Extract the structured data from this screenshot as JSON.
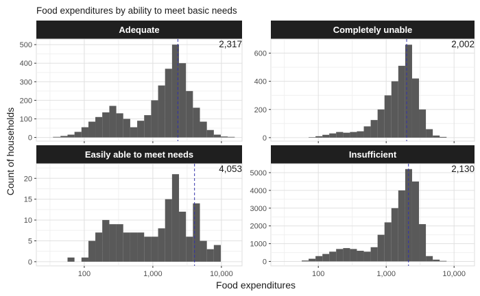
{
  "chart_data": {
    "type": "histogram",
    "title": "Food expenditures by ability to meet basic needs",
    "xlabel": "Food expenditures",
    "ylabel": "Count of households",
    "x_scale": "log10",
    "xlim": [
      20,
      20000
    ],
    "x_ticks": [
      100,
      1000,
      10000
    ],
    "x_tick_labels": [
      "100",
      "1,000",
      "10,000"
    ],
    "bar_color": "#595959",
    "median_line_color": "#3333aa",
    "strip_color": "#1f1f1f",
    "grid": true,
    "panels": [
      {
        "name": "Adequate",
        "median": 2317,
        "median_label": "2,317",
        "ylim": [
          -20,
          530
        ],
        "y_ticks": [
          0,
          100,
          200,
          300,
          400,
          500
        ],
        "y_tick_labels": [
          "0",
          "100",
          "200",
          "300",
          "400",
          "500"
        ],
        "bins": [
          {
            "x0": 35,
            "x1": 45,
            "count": 3
          },
          {
            "x0": 45,
            "x1": 57,
            "count": 8
          },
          {
            "x0": 57,
            "x1": 72,
            "count": 15
          },
          {
            "x0": 72,
            "x1": 91,
            "count": 30
          },
          {
            "x0": 91,
            "x1": 115,
            "count": 55
          },
          {
            "x0": 115,
            "x1": 145,
            "count": 85
          },
          {
            "x0": 145,
            "x1": 183,
            "count": 110
          },
          {
            "x0": 183,
            "x1": 232,
            "count": 135
          },
          {
            "x0": 232,
            "x1": 293,
            "count": 170
          },
          {
            "x0": 293,
            "x1": 370,
            "count": 130
          },
          {
            "x0": 370,
            "x1": 468,
            "count": 100
          },
          {
            "x0": 468,
            "x1": 591,
            "count": 55
          },
          {
            "x0": 591,
            "x1": 747,
            "count": 90
          },
          {
            "x0": 747,
            "x1": 944,
            "count": 120
          },
          {
            "x0": 944,
            "x1": 1193,
            "count": 200
          },
          {
            "x0": 1193,
            "x1": 1507,
            "count": 280
          },
          {
            "x0": 1507,
            "x1": 1905,
            "count": 370
          },
          {
            "x0": 1905,
            "x1": 2407,
            "count": 500
          },
          {
            "x0": 2407,
            "x1": 3041,
            "count": 400
          },
          {
            "x0": 3041,
            "x1": 3843,
            "count": 250
          },
          {
            "x0": 3843,
            "x1": 4856,
            "count": 160
          },
          {
            "x0": 4856,
            "x1": 6136,
            "count": 85
          },
          {
            "x0": 6136,
            "x1": 7753,
            "count": 40
          },
          {
            "x0": 7753,
            "x1": 9797,
            "count": 15
          },
          {
            "x0": 9797,
            "x1": 12379,
            "count": 5
          },
          {
            "x0": 12379,
            "x1": 15641,
            "count": 3
          }
        ]
      },
      {
        "name": "Completely unable",
        "median": 2002,
        "median_label": "2,002",
        "ylim": [
          -25,
          700
        ],
        "y_ticks": [
          0,
          200,
          400,
          600
        ],
        "y_tick_labels": [
          "0",
          "200",
          "400",
          "600"
        ],
        "bins": [
          {
            "x0": 72,
            "x1": 91,
            "count": 3
          },
          {
            "x0": 91,
            "x1": 115,
            "count": 10
          },
          {
            "x0": 115,
            "x1": 145,
            "count": 20
          },
          {
            "x0": 145,
            "x1": 183,
            "count": 30
          },
          {
            "x0": 183,
            "x1": 232,
            "count": 40
          },
          {
            "x0": 232,
            "x1": 293,
            "count": 35
          },
          {
            "x0": 293,
            "x1": 370,
            "count": 40
          },
          {
            "x0": 370,
            "x1": 468,
            "count": 45
          },
          {
            "x0": 468,
            "x1": 591,
            "count": 80
          },
          {
            "x0": 591,
            "x1": 747,
            "count": 125
          },
          {
            "x0": 747,
            "x1": 944,
            "count": 200
          },
          {
            "x0": 944,
            "x1": 1193,
            "count": 300
          },
          {
            "x0": 1193,
            "x1": 1507,
            "count": 400
          },
          {
            "x0": 1507,
            "x1": 1905,
            "count": 510
          },
          {
            "x0": 1905,
            "x1": 2407,
            "count": 660
          },
          {
            "x0": 2407,
            "x1": 3041,
            "count": 420
          },
          {
            "x0": 3041,
            "x1": 3843,
            "count": 200
          },
          {
            "x0": 3843,
            "x1": 4856,
            "count": 60
          },
          {
            "x0": 4856,
            "x1": 6136,
            "count": 15
          },
          {
            "x0": 6136,
            "x1": 7753,
            "count": 5
          }
        ]
      },
      {
        "name": "Easily able to meet needs",
        "median": 4053,
        "median_label": "4,053",
        "ylim": [
          -1,
          23.5
        ],
        "y_ticks": [
          0,
          5,
          10,
          15,
          20
        ],
        "y_tick_labels": [
          "0",
          "5",
          "10",
          "15",
          "20"
        ],
        "bins": [
          {
            "x0": 57,
            "x1": 72,
            "count": 1
          },
          {
            "x0": 91,
            "x1": 115,
            "count": 1
          },
          {
            "x0": 115,
            "x1": 145,
            "count": 5
          },
          {
            "x0": 145,
            "x1": 183,
            "count": 7
          },
          {
            "x0": 183,
            "x1": 232,
            "count": 10
          },
          {
            "x0": 232,
            "x1": 293,
            "count": 9
          },
          {
            "x0": 293,
            "x1": 370,
            "count": 9
          },
          {
            "x0": 370,
            "x1": 468,
            "count": 7
          },
          {
            "x0": 468,
            "x1": 591,
            "count": 7
          },
          {
            "x0": 591,
            "x1": 747,
            "count": 7
          },
          {
            "x0": 747,
            "x1": 944,
            "count": 6
          },
          {
            "x0": 944,
            "x1": 1193,
            "count": 6
          },
          {
            "x0": 1193,
            "x1": 1507,
            "count": 8
          },
          {
            "x0": 1507,
            "x1": 1905,
            "count": 15
          },
          {
            "x0": 1905,
            "x1": 2407,
            "count": 21
          },
          {
            "x0": 2407,
            "x1": 3041,
            "count": 12
          },
          {
            "x0": 3041,
            "x1": 3843,
            "count": 6
          },
          {
            "x0": 3843,
            "x1": 4856,
            "count": 14
          },
          {
            "x0": 4856,
            "x1": 6136,
            "count": 5
          },
          {
            "x0": 6136,
            "x1": 7753,
            "count": 3
          },
          {
            "x0": 7753,
            "x1": 9797,
            "count": 4
          }
        ]
      },
      {
        "name": "Insufficient",
        "median": 2130,
        "median_label": "2,130",
        "ylim": [
          -250,
          5500
        ],
        "y_ticks": [
          0,
          1000,
          2000,
          3000,
          4000,
          5000
        ],
        "y_tick_labels": [
          "0",
          "1000",
          "2000",
          "3000",
          "4000",
          "5000"
        ],
        "bins": [
          {
            "x0": 57,
            "x1": 72,
            "count": 50
          },
          {
            "x0": 72,
            "x1": 91,
            "count": 150
          },
          {
            "x0": 91,
            "x1": 115,
            "count": 300
          },
          {
            "x0": 115,
            "x1": 145,
            "count": 420
          },
          {
            "x0": 145,
            "x1": 183,
            "count": 550
          },
          {
            "x0": 183,
            "x1": 232,
            "count": 700
          },
          {
            "x0": 232,
            "x1": 293,
            "count": 750
          },
          {
            "x0": 293,
            "x1": 370,
            "count": 700
          },
          {
            "x0": 370,
            "x1": 468,
            "count": 600
          },
          {
            "x0": 468,
            "x1": 591,
            "count": 550
          },
          {
            "x0": 591,
            "x1": 747,
            "count": 800
          },
          {
            "x0": 747,
            "x1": 944,
            "count": 1500
          },
          {
            "x0": 944,
            "x1": 1193,
            "count": 2200
          },
          {
            "x0": 1193,
            "x1": 1507,
            "count": 3000
          },
          {
            "x0": 1507,
            "x1": 1905,
            "count": 4000
          },
          {
            "x0": 1905,
            "x1": 2407,
            "count": 5200
          },
          {
            "x0": 2407,
            "x1": 3041,
            "count": 4500
          },
          {
            "x0": 3041,
            "x1": 3843,
            "count": 2100
          },
          {
            "x0": 3843,
            "x1": 4856,
            "count": 300
          },
          {
            "x0": 4856,
            "x1": 6136,
            "count": 100
          },
          {
            "x0": 6136,
            "x1": 7753,
            "count": 30
          }
        ]
      }
    ]
  }
}
